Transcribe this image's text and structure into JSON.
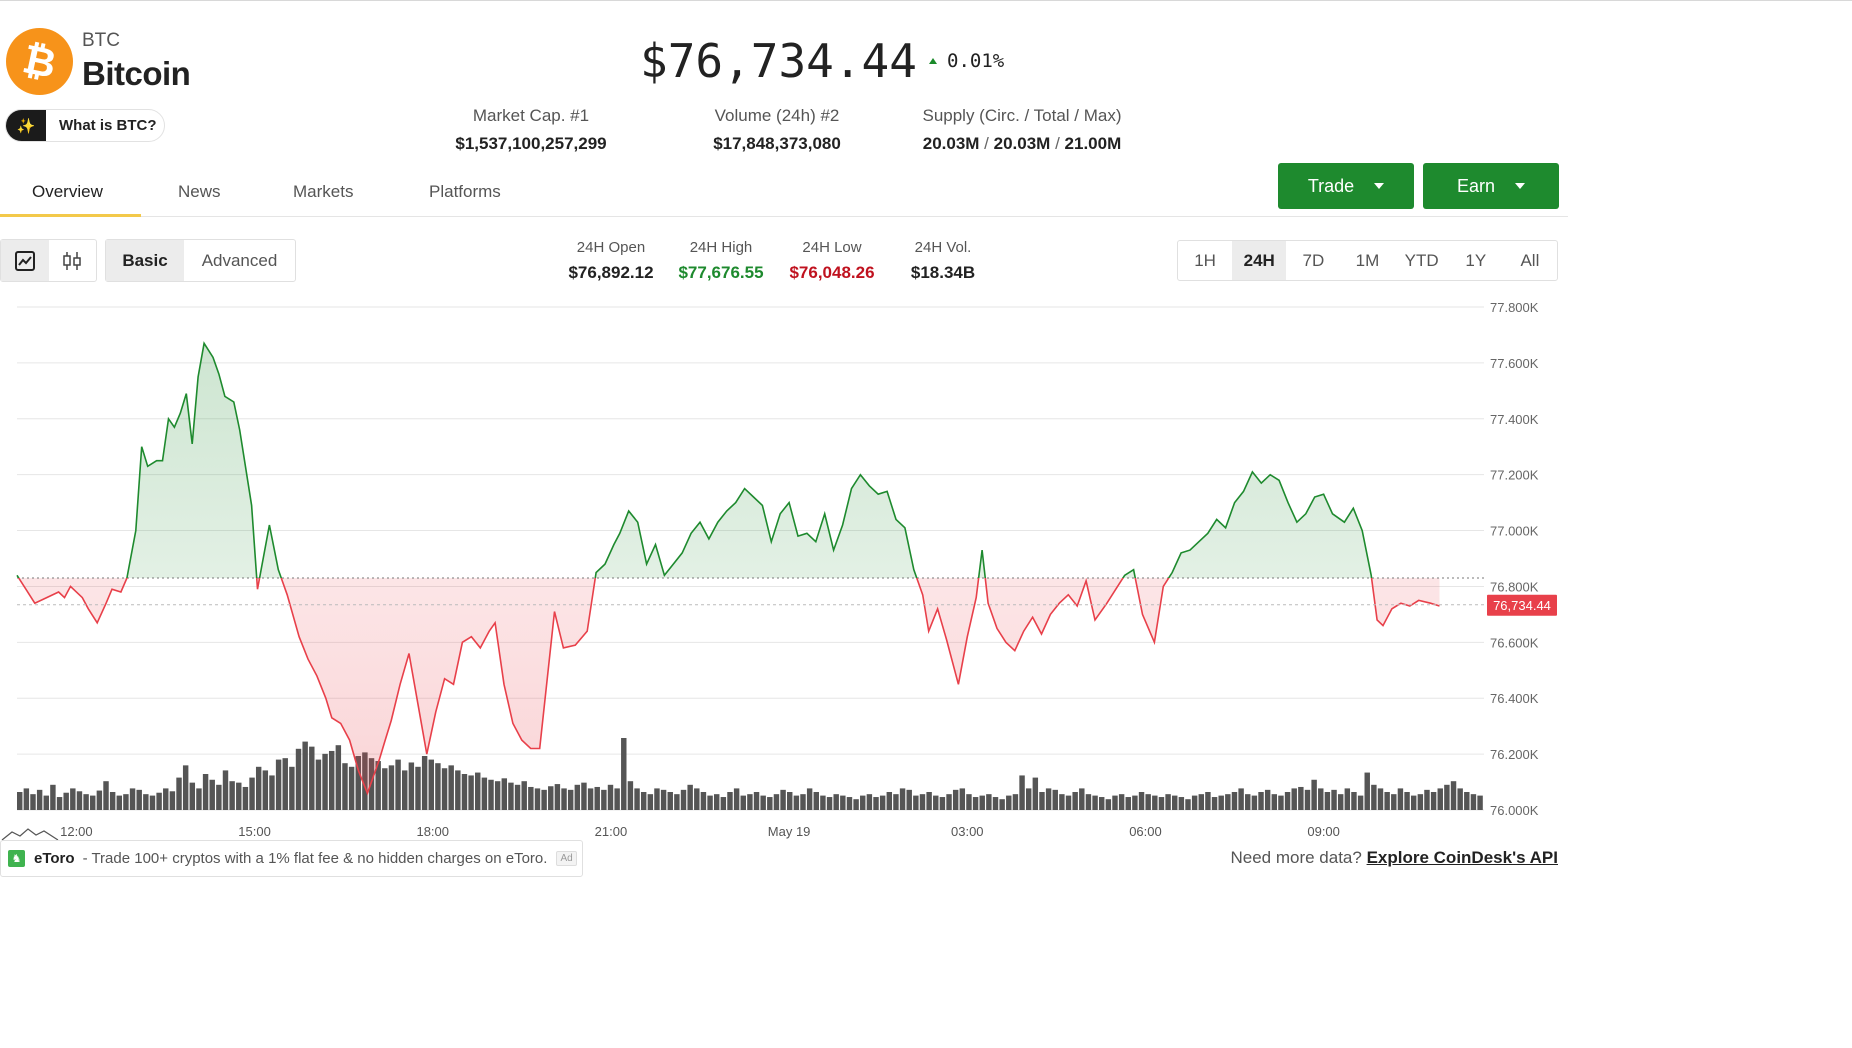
{
  "coin": {
    "symbol": "BTC",
    "name": "Bitcoin",
    "what_is_label": "What is BTC?"
  },
  "price": {
    "value": "$76,734.44",
    "change": "0.01%",
    "change_direction": "up"
  },
  "stats": [
    {
      "label": "Market Cap. #1",
      "value": "$1,537,100,257,299"
    },
    {
      "label": "Volume (24h) #2",
      "value": "$17,848,373,080"
    },
    {
      "label": "Supply (Circ. / Total / Max)",
      "parts": [
        "20.03M",
        "20.03M",
        "21.00M"
      ],
      "separator": "/"
    }
  ],
  "tabs": [
    {
      "label": "Overview",
      "active": true
    },
    {
      "label": "News",
      "active": false
    },
    {
      "label": "Markets",
      "active": false
    },
    {
      "label": "Platforms",
      "active": false
    }
  ],
  "buttons": {
    "trade": "Trade",
    "earn": "Earn"
  },
  "chart_modes": {
    "basic": "Basic",
    "advanced": "Advanced"
  },
  "day_stats": [
    {
      "label": "24H Open",
      "value": "$76,892.12",
      "color": "#222222"
    },
    {
      "label": "24H High",
      "value": "$77,676.55",
      "color": "#1e8a2e"
    },
    {
      "label": "24H Low",
      "value": "$76,048.26",
      "color": "#c0121f"
    },
    {
      "label": "24H Vol.",
      "value": "$18.34B",
      "color": "#222222"
    }
  ],
  "ranges": [
    {
      "label": "1H",
      "active": false
    },
    {
      "label": "24H",
      "active": true
    },
    {
      "label": "7D",
      "active": false
    },
    {
      "label": "1M",
      "active": false
    },
    {
      "label": "YTD",
      "active": false
    },
    {
      "label": "1Y",
      "active": false
    },
    {
      "label": "All",
      "active": false
    }
  ],
  "chart_data": {
    "type": "area",
    "baseline": 76830,
    "current_price": 76734.44,
    "current_price_label": "76,734.44",
    "ylim": [
      76000,
      77800
    ],
    "y_ticks": [
      "76.000K",
      "76.200K",
      "76.400K",
      "76.600K",
      "76.800K",
      "77.000K",
      "77.200K",
      "77.400K",
      "77.600K",
      "77.800K"
    ],
    "x_ticks": [
      {
        "label": "12:00",
        "t": 3
      },
      {
        "label": "15:00",
        "t": 6
      },
      {
        "label": "18:00",
        "t": 9
      },
      {
        "label": "21:00",
        "t": 12
      },
      {
        "label": "May 19",
        "t": 15
      },
      {
        "label": "03:00",
        "t": 18
      },
      {
        "label": "06:00",
        "t": 21
      },
      {
        "label": "09:00",
        "t": 24
      }
    ],
    "t_range": [
      2.0,
      26.7
    ],
    "price_points": [
      [
        2.0,
        76840
      ],
      [
        2.15,
        76790
      ],
      [
        2.3,
        76740
      ],
      [
        2.5,
        76760
      ],
      [
        2.7,
        76780
      ],
      [
        2.8,
        76760
      ],
      [
        2.9,
        76800
      ],
      [
        3.1,
        76760
      ],
      [
        3.2,
        76720
      ],
      [
        3.35,
        76670
      ],
      [
        3.5,
        76740
      ],
      [
        3.6,
        76790
      ],
      [
        3.75,
        76780
      ],
      [
        3.85,
        76830
      ],
      [
        4.0,
        77000
      ],
      [
        4.1,
        77300
      ],
      [
        4.2,
        77230
      ],
      [
        4.35,
        77250
      ],
      [
        4.45,
        77250
      ],
      [
        4.55,
        77400
      ],
      [
        4.65,
        77370
      ],
      [
        4.75,
        77420
      ],
      [
        4.85,
        77490
      ],
      [
        4.95,
        77310
      ],
      [
        5.05,
        77550
      ],
      [
        5.15,
        77670
      ],
      [
        5.3,
        77620
      ],
      [
        5.4,
        77560
      ],
      [
        5.5,
        77480
      ],
      [
        5.65,
        77460
      ],
      [
        5.75,
        77360
      ],
      [
        5.95,
        77090
      ],
      [
        6.05,
        76790
      ],
      [
        6.25,
        77020
      ],
      [
        6.4,
        76860
      ],
      [
        6.55,
        76770
      ],
      [
        6.75,
        76620
      ],
      [
        6.9,
        76540
      ],
      [
        7.05,
        76480
      ],
      [
        7.2,
        76400
      ],
      [
        7.3,
        76330
      ],
      [
        7.45,
        76310
      ],
      [
        7.6,
        76250
      ],
      [
        7.75,
        76140
      ],
      [
        7.9,
        76060
      ],
      [
        8.0,
        76120
      ],
      [
        8.1,
        76180
      ],
      [
        8.2,
        76250
      ],
      [
        8.3,
        76320
      ],
      [
        8.45,
        76450
      ],
      [
        8.6,
        76560
      ],
      [
        8.75,
        76380
      ],
      [
        8.9,
        76200
      ],
      [
        9.05,
        76350
      ],
      [
        9.2,
        76470
      ],
      [
        9.35,
        76450
      ],
      [
        9.5,
        76600
      ],
      [
        9.65,
        76620
      ],
      [
        9.8,
        76580
      ],
      [
        9.95,
        76640
      ],
      [
        10.05,
        76670
      ],
      [
        10.2,
        76450
      ],
      [
        10.35,
        76310
      ],
      [
        10.5,
        76250
      ],
      [
        10.65,
        76220
      ],
      [
        10.8,
        76220
      ],
      [
        11.05,
        76710
      ],
      [
        11.2,
        76580
      ],
      [
        11.4,
        76590
      ],
      [
        11.6,
        76640
      ],
      [
        11.75,
        76850
      ],
      [
        11.9,
        76880
      ],
      [
        12.05,
        76950
      ],
      [
        12.15,
        76990
      ],
      [
        12.3,
        77070
      ],
      [
        12.45,
        77030
      ],
      [
        12.6,
        76880
      ],
      [
        12.75,
        76950
      ],
      [
        12.9,
        76840
      ],
      [
        13.05,
        76880
      ],
      [
        13.2,
        76920
      ],
      [
        13.35,
        76990
      ],
      [
        13.5,
        77030
      ],
      [
        13.65,
        76970
      ],
      [
        13.8,
        77030
      ],
      [
        13.95,
        77070
      ],
      [
        14.1,
        77100
      ],
      [
        14.25,
        77150
      ],
      [
        14.4,
        77120
      ],
      [
        14.55,
        77090
      ],
      [
        14.7,
        76960
      ],
      [
        14.85,
        77060
      ],
      [
        15.0,
        77100
      ],
      [
        15.15,
        76980
      ],
      [
        15.3,
        76990
      ],
      [
        15.45,
        76960
      ],
      [
        15.6,
        77060
      ],
      [
        15.75,
        76930
      ],
      [
        15.9,
        77020
      ],
      [
        16.05,
        77150
      ],
      [
        16.2,
        77200
      ],
      [
        16.35,
        77160
      ],
      [
        16.5,
        77130
      ],
      [
        16.65,
        77140
      ],
      [
        16.8,
        77040
      ],
      [
        16.95,
        77010
      ],
      [
        17.1,
        76860
      ],
      [
        17.25,
        76770
      ],
      [
        17.35,
        76640
      ],
      [
        17.5,
        76720
      ],
      [
        17.65,
        76610
      ],
      [
        17.85,
        76450
      ],
      [
        18.0,
        76620
      ],
      [
        18.15,
        76760
      ],
      [
        18.25,
        76930
      ],
      [
        18.35,
        76740
      ],
      [
        18.5,
        76650
      ],
      [
        18.65,
        76600
      ],
      [
        18.8,
        76570
      ],
      [
        18.95,
        76640
      ],
      [
        19.1,
        76690
      ],
      [
        19.25,
        76630
      ],
      [
        19.4,
        76700
      ],
      [
        19.55,
        76740
      ],
      [
        19.7,
        76770
      ],
      [
        19.85,
        76730
      ],
      [
        20.0,
        76820
      ],
      [
        20.15,
        76680
      ],
      [
        20.35,
        76740
      ],
      [
        20.5,
        76790
      ],
      [
        20.65,
        76840
      ],
      [
        20.8,
        76860
      ],
      [
        20.95,
        76700
      ],
      [
        21.15,
        76600
      ],
      [
        21.3,
        76800
      ],
      [
        21.45,
        76850
      ],
      [
        21.6,
        76920
      ],
      [
        21.75,
        76930
      ],
      [
        21.9,
        76960
      ],
      [
        22.05,
        76990
      ],
      [
        22.2,
        77040
      ],
      [
        22.35,
        77010
      ],
      [
        22.5,
        77100
      ],
      [
        22.65,
        77140
      ],
      [
        22.8,
        77210
      ],
      [
        22.95,
        77170
      ],
      [
        23.1,
        77200
      ],
      [
        23.25,
        77180
      ],
      [
        23.4,
        77100
      ],
      [
        23.55,
        77030
      ],
      [
        23.7,
        77060
      ],
      [
        23.85,
        77120
      ],
      [
        24.0,
        77130
      ],
      [
        24.15,
        77060
      ],
      [
        24.35,
        77030
      ],
      [
        24.5,
        77080
      ],
      [
        24.65,
        77000
      ],
      [
        24.8,
        76840
      ],
      [
        24.9,
        76680
      ],
      [
        25.0,
        76660
      ],
      [
        25.15,
        76720
      ],
      [
        25.3,
        76740
      ],
      [
        25.45,
        76730
      ],
      [
        25.6,
        76750
      ],
      [
        25.8,
        76740
      ],
      [
        25.95,
        76730
      ]
    ],
    "volume_max": 1.0,
    "volumes": [
      0.25,
      0.3,
      0.22,
      0.28,
      0.2,
      0.35,
      0.18,
      0.24,
      0.3,
      0.26,
      0.22,
      0.2,
      0.27,
      0.4,
      0.25,
      0.2,
      0.22,
      0.3,
      0.28,
      0.22,
      0.2,
      0.24,
      0.3,
      0.26,
      0.45,
      0.62,
      0.38,
      0.3,
      0.5,
      0.42,
      0.35,
      0.55,
      0.4,
      0.38,
      0.32,
      0.45,
      0.6,
      0.55,
      0.48,
      0.7,
      0.72,
      0.6,
      0.85,
      0.95,
      0.88,
      0.7,
      0.78,
      0.82,
      0.9,
      0.65,
      0.6,
      0.75,
      0.8,
      0.72,
      0.68,
      0.58,
      0.62,
      0.7,
      0.55,
      0.66,
      0.6,
      0.75,
      0.7,
      0.65,
      0.58,
      0.62,
      0.55,
      0.5,
      0.48,
      0.52,
      0.45,
      0.42,
      0.4,
      0.44,
      0.38,
      0.35,
      0.4,
      0.32,
      0.3,
      0.28,
      0.33,
      0.36,
      0.3,
      0.28,
      0.35,
      0.38,
      0.3,
      0.32,
      0.28,
      0.35,
      0.3,
      1.0,
      0.4,
      0.3,
      0.25,
      0.22,
      0.3,
      0.28,
      0.25,
      0.22,
      0.28,
      0.35,
      0.3,
      0.25,
      0.2,
      0.22,
      0.18,
      0.25,
      0.3,
      0.2,
      0.22,
      0.25,
      0.2,
      0.18,
      0.22,
      0.28,
      0.25,
      0.2,
      0.22,
      0.3,
      0.25,
      0.2,
      0.18,
      0.22,
      0.2,
      0.18,
      0.15,
      0.2,
      0.22,
      0.18,
      0.2,
      0.25,
      0.22,
      0.3,
      0.28,
      0.2,
      0.22,
      0.25,
      0.2,
      0.18,
      0.22,
      0.28,
      0.3,
      0.22,
      0.18,
      0.2,
      0.22,
      0.18,
      0.15,
      0.2,
      0.22,
      0.48,
      0.3,
      0.45,
      0.25,
      0.3,
      0.28,
      0.22,
      0.2,
      0.25,
      0.3,
      0.22,
      0.2,
      0.18,
      0.15,
      0.2,
      0.22,
      0.18,
      0.2,
      0.25,
      0.22,
      0.2,
      0.18,
      0.22,
      0.2,
      0.18,
      0.15,
      0.2,
      0.22,
      0.25,
      0.18,
      0.2,
      0.22,
      0.25,
      0.3,
      0.22,
      0.2,
      0.25,
      0.28,
      0.22,
      0.2,
      0.25,
      0.3,
      0.32,
      0.28,
      0.42,
      0.3,
      0.25,
      0.28,
      0.22,
      0.3,
      0.25,
      0.2,
      0.52,
      0.35,
      0.3,
      0.25,
      0.22,
      0.3,
      0.25,
      0.2,
      0.22,
      0.28,
      0.25,
      0.3,
      0.35,
      0.4,
      0.3,
      0.25,
      0.22,
      0.2
    ]
  },
  "footer": {
    "ad_brand": "eToro",
    "ad_text": "- Trade 100+ cryptos with a 1% flat fee & no hidden charges on eToro.",
    "ad_tag": "Ad",
    "more_text": "Need more data?",
    "more_link": "Explore CoinDesk's API"
  },
  "colors": {
    "up": "#1e8a2e",
    "down": "#e8404a",
    "accent_tab": "#f3c94a",
    "btc": "#f7931a"
  }
}
